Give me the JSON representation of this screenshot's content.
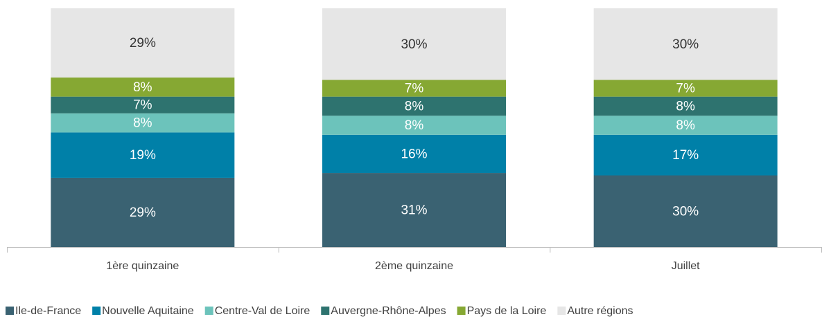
{
  "chart_data": {
    "type": "stacked_bar",
    "categories": [
      "1ère quinzaine",
      "2ème quinzaine",
      "Juillet"
    ],
    "series": [
      {
        "name": "Ile-de-France",
        "color": "#3a6272",
        "values": [
          29,
          31,
          30
        ],
        "value_labels": [
          "29%",
          "31%",
          "30%"
        ]
      },
      {
        "name": "Nouvelle Aquitaine",
        "color": "#0080a8",
        "values": [
          19,
          16,
          17
        ],
        "value_labels": [
          "19%",
          "16%",
          "17%"
        ]
      },
      {
        "name": "Centre-Val de Loire",
        "color": "#6cc3bb",
        "values": [
          8,
          8,
          8
        ],
        "value_labels": [
          "8%",
          "8%",
          "8%"
        ]
      },
      {
        "name": "Auvergne-Rhône-Alpes",
        "color": "#2e736f",
        "values": [
          7,
          8,
          8
        ],
        "value_labels": [
          "7%",
          "8%",
          "8%"
        ]
      },
      {
        "name": "Pays de la Loire",
        "color": "#86a833",
        "values": [
          8,
          7,
          7
        ],
        "value_labels": [
          "8%",
          "7%",
          "7%"
        ]
      },
      {
        "name": "Autre régions",
        "color": "#e6e6e6",
        "values": [
          29,
          30,
          30
        ],
        "value_labels": [
          "29%",
          "30%",
          "30%"
        ]
      }
    ],
    "legend": "bottom"
  }
}
